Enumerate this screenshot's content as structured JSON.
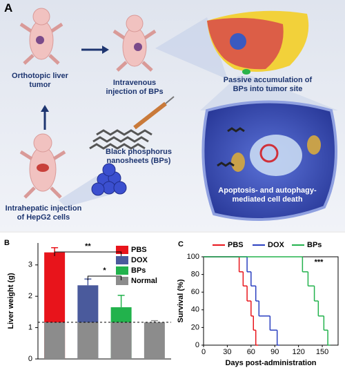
{
  "panel_a": {
    "label": "A",
    "texts": [
      "Orthotopic liver tumor",
      "Intravenous injection of BPs",
      "Passive accumulation of BPs into tumor site",
      "Black phosphorus nanosheets (BPs)",
      "Apoptosis- and autophagy-mediated cell death",
      "Intrahepatic injection of HepG2 cells"
    ]
  },
  "chart_data": [
    {
      "type": "bar",
      "panel": "B",
      "y_label": "Liver weight (g)",
      "series": [
        {
          "name": "PBS",
          "color": "#e8141b",
          "values": [
            3.4
          ],
          "errors": [
            0.15
          ]
        },
        {
          "name": "DOX",
          "color": "#4a5a9c",
          "values": [
            2.35
          ],
          "errors": [
            0.2
          ]
        },
        {
          "name": "BPs",
          "color": "#22b24c",
          "values": [
            1.65
          ],
          "errors": [
            0.38
          ]
        },
        {
          "name": "Normal",
          "color": "#8c8c8c",
          "values": [
            1.17
          ],
          "errors": [
            0.05
          ]
        }
      ],
      "annotations": [
        "**",
        "*"
      ],
      "ylim": [
        0,
        3.7
      ],
      "yticks": [
        0,
        1,
        2,
        3
      ]
    },
    {
      "type": "step",
      "panel": "C",
      "x_label": "Days post-administration",
      "y_label": "Survival (%)",
      "series": [
        {
          "name": "PBS",
          "color": "#e8141b",
          "x": [
            0,
            45,
            50,
            55,
            60,
            63,
            66
          ],
          "values": [
            100,
            83,
            67,
            50,
            33,
            17,
            0
          ]
        },
        {
          "name": "DOX",
          "color": "#2a3fc0",
          "x": [
            0,
            55,
            60,
            66,
            70,
            84,
            93
          ],
          "values": [
            100,
            83,
            67,
            50,
            33,
            17,
            0
          ]
        },
        {
          "name": "BPs",
          "color": "#22b24c",
          "x": [
            0,
            125,
            132,
            140,
            145,
            152,
            157
          ],
          "values": [
            100,
            83,
            67,
            50,
            33,
            17,
            0
          ]
        }
      ],
      "annotations": [
        "***"
      ],
      "xlim": [
        0,
        170
      ],
      "xticks": [
        0,
        30,
        60,
        90,
        120,
        150
      ],
      "ylim": [
        0,
        100
      ],
      "yticks": [
        0,
        20,
        40,
        60,
        80,
        100
      ]
    }
  ]
}
